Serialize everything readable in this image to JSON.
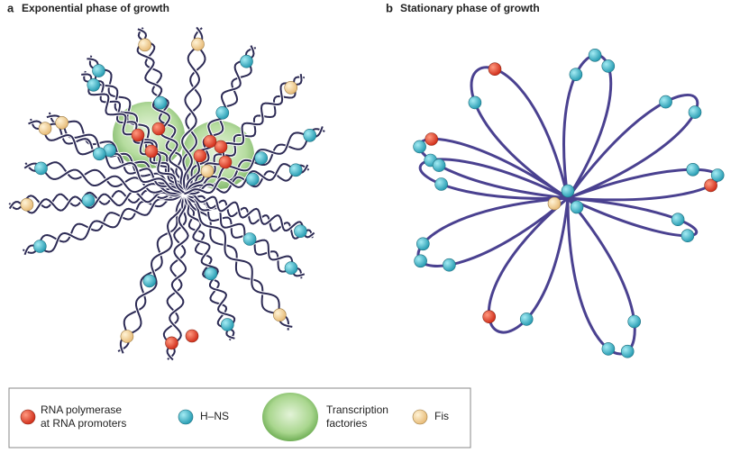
{
  "panels": [
    {
      "letter": "a",
      "title": "Exponential phase of growth"
    },
    {
      "letter": "b",
      "title": "Stationary phase of growth"
    }
  ],
  "legend": {
    "items": [
      {
        "lines": [
          "RNA polymerase",
          "at RNA promoters"
        ]
      },
      {
        "lines": [
          "H–NS"
        ]
      },
      {
        "lines": [
          "Transcription",
          "factories"
        ]
      },
      {
        "lines": [
          "Fis"
        ]
      }
    ]
  }
}
